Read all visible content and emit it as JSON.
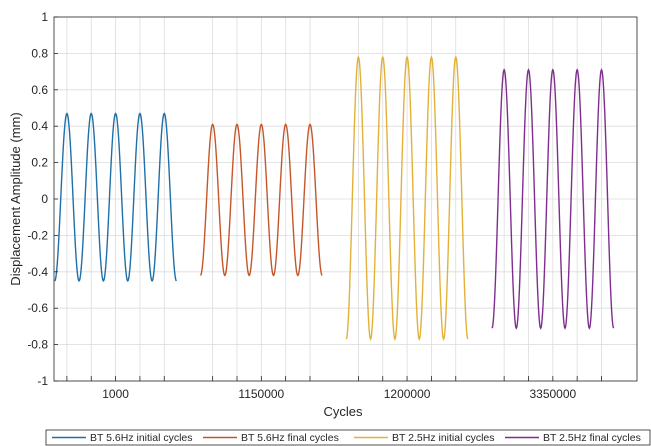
{
  "chart_data": {
    "type": "line",
    "xlabel": "Cycles",
    "ylabel": "Displacement Amplitude (mm)",
    "ylim": [
      -1,
      1
    ],
    "yticks": [
      "1",
      "0.8",
      "0.6",
      "0.4",
      "0.2",
      "0",
      "-0.2",
      "-0.4",
      "-0.6",
      "-0.8",
      "-1"
    ],
    "xtick_labels": [
      "1000",
      "1150000",
      "1200000",
      "3350000"
    ],
    "grid": true,
    "legend_position": "bottom",
    "series": [
      {
        "name": "BT 5.6Hz initial cycles",
        "color": "#1f6fa8",
        "peak": 0.47,
        "trough": -0.45,
        "cycles": 5
      },
      {
        "name": "BT 5.6Hz final cycles",
        "color": "#c4572a",
        "peak": 0.41,
        "trough": -0.42,
        "cycles": 5
      },
      {
        "name": "BT 2.5Hz initial cycles",
        "color": "#e3b13a",
        "peak": 0.78,
        "trough": -0.77,
        "cycles": 5
      },
      {
        "name": "BT 2.5Hz final cycles",
        "color": "#7e2f8e",
        "peak": 0.71,
        "trough": -0.71,
        "cycles": 5
      }
    ]
  }
}
